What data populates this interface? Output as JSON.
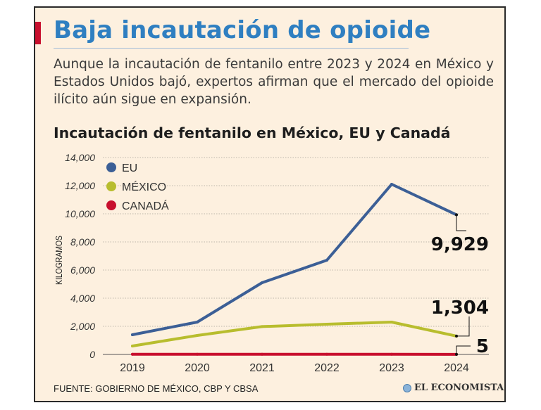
{
  "header": {
    "title": "Baja incautación de opioide",
    "lede": "Aunque la incautación de fentanilo entre 2023 y 2024 en México y Estados Unidos bajó, expertos afirman que el mercado del opioide ilícito aún sigue en expansión."
  },
  "footer": {
    "source": "FUENTE: GOBIERNO DE MÉXICO, CBP Y CBSA",
    "logo": "EL ECONOMISTA"
  },
  "chart_data": {
    "type": "line",
    "title": "Incautación de fentanilo en México, EU y Canadá",
    "xlabel": "",
    "ylabel": "KILOGRAMOS",
    "x": [
      "2019",
      "2020",
      "2021",
      "2022",
      "2023",
      "2024"
    ],
    "ylim": [
      0,
      14000
    ],
    "yticks": [
      0,
      2000,
      4000,
      6000,
      8000,
      10000,
      12000,
      14000
    ],
    "ytick_labels": [
      "0",
      "2,000",
      "4,000",
      "6,000",
      "8,000",
      "10,000",
      "12,000",
      "14,000"
    ],
    "grid": "horizontal dotted",
    "legend_position": "top-left",
    "series": [
      {
        "name": "EU",
        "color": "#3c5f96",
        "values": [
          1400,
          2300,
          5100,
          6700,
          12100,
          9929
        ]
      },
      {
        "name": "MÉXICO",
        "color": "#b8bd2e",
        "values": [
          600,
          1350,
          1980,
          2150,
          2300,
          1304
        ]
      },
      {
        "name": "CANADÁ",
        "color": "#c8102e",
        "values": [
          10,
          10,
          10,
          10,
          10,
          5
        ]
      }
    ],
    "annotations": [
      "9,929",
      "1,304",
      "5"
    ]
  }
}
